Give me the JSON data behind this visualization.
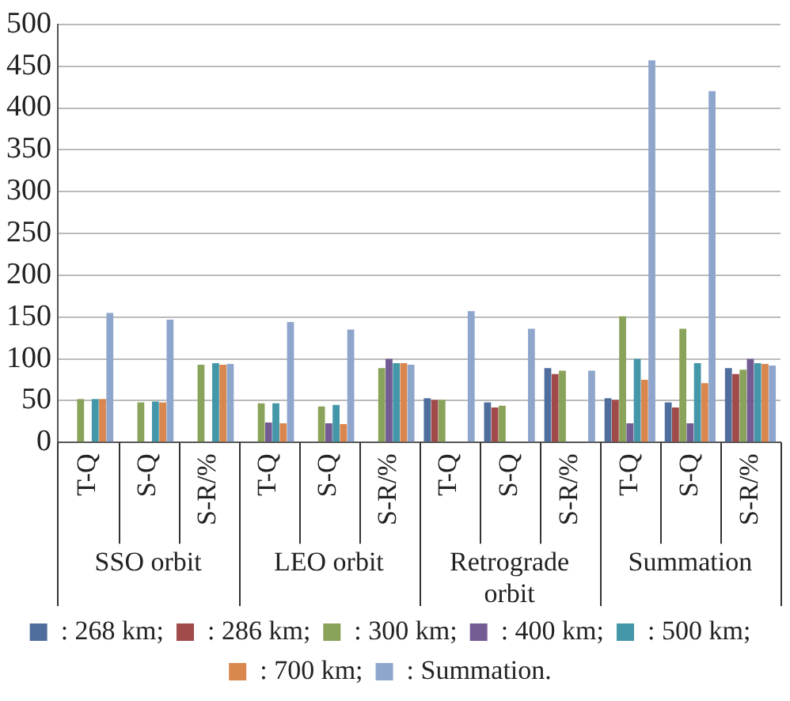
{
  "chart_data": {
    "type": "bar",
    "categories": [
      "T-Q",
      "S-Q",
      "S-R/%",
      "T-Q",
      "S-Q",
      "S-R/%",
      "T-Q",
      "S-Q",
      "S-R/%",
      "T-Q",
      "S-Q",
      "S-R/%"
    ],
    "annotations": [
      "SSO orbit",
      "LEO orbit",
      "Retrograde orbit",
      "Summation"
    ],
    "ylim": [
      0,
      500
    ],
    "yticks": [
      0,
      50,
      100,
      150,
      200,
      250,
      300,
      350,
      400,
      450,
      500
    ],
    "grid": "y",
    "legend": "bottom",
    "series": [
      {
        "name": ": 268 km;",
        "color": "#4f6e9e",
        "values": [
          null,
          null,
          null,
          null,
          null,
          null,
          53,
          48,
          89,
          53,
          48,
          89
        ]
      },
      {
        "name": ": 286 km;",
        "color": "#a04b4a",
        "values": [
          null,
          null,
          null,
          null,
          null,
          null,
          51,
          42,
          82,
          51,
          42,
          82
        ]
      },
      {
        "name": ": 300 km;",
        "color": "#8aa35a",
        "values": [
          52,
          48,
          93,
          47,
          43,
          89,
          51,
          44,
          86,
          151,
          136,
          87
        ]
      },
      {
        "name": ": 400 km;",
        "color": "#735c94",
        "values": [
          null,
          null,
          null,
          24,
          23,
          100,
          null,
          null,
          null,
          23,
          23,
          100
        ]
      },
      {
        "name": ": 500 km;",
        "color": "#4497a8",
        "values": [
          52,
          49,
          95,
          47,
          45,
          95,
          null,
          null,
          null,
          100,
          95,
          95
        ]
      },
      {
        "name": ": 700 km;",
        "color": "#d9874f",
        "values": [
          52,
          48,
          93,
          23,
          22,
          95,
          null,
          null,
          null,
          75,
          71,
          94
        ]
      },
      {
        "name": ": Summation.",
        "color": "#8fa6cc",
        "values": [
          155,
          147,
          94,
          144,
          135,
          93,
          157,
          136,
          86,
          457,
          420,
          92
        ]
      }
    ]
  }
}
